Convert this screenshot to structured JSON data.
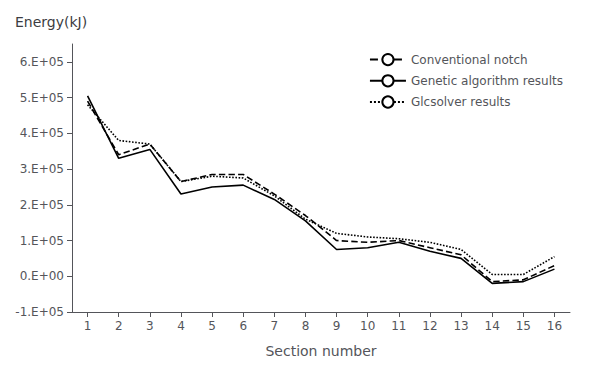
{
  "chart_data": {
    "type": "line",
    "title": "Energy(kJ)",
    "xlabel": "Section number",
    "x": [
      1,
      2,
      3,
      4,
      5,
      6,
      7,
      8,
      9,
      10,
      11,
      12,
      13,
      14,
      15,
      16
    ],
    "xlim": [
      0.5,
      16.5
    ],
    "xticks": [
      1,
      2,
      3,
      4,
      5,
      6,
      7,
      8,
      9,
      10,
      11,
      12,
      13,
      14,
      15,
      16
    ],
    "ylim": [
      -100000,
      650000
    ],
    "yticks": [
      {
        "value": -100000,
        "label": "-1.E+05"
      },
      {
        "value": 0,
        "label": "0.E+00"
      },
      {
        "value": 100000,
        "label": "1.E+05"
      },
      {
        "value": 200000,
        "label": "2.E+05"
      },
      {
        "value": 300000,
        "label": "3.E+05"
      },
      {
        "value": 400000,
        "label": "4.E+05"
      },
      {
        "value": 500000,
        "label": "5.E+05"
      },
      {
        "value": 600000,
        "label": "6.E+05"
      }
    ],
    "grid": false,
    "legend": "upper right",
    "series": [
      {
        "name": "Conventional notch",
        "color": "#000000",
        "line_style": "dashed",
        "values": [
          490000,
          340000,
          370000,
          265000,
          285000,
          285000,
          230000,
          170000,
          100000,
          95000,
          100000,
          80000,
          60000,
          -15000,
          -10000,
          30000
        ]
      },
      {
        "name": "Genetic algorithm results",
        "color": "#000000",
        "line_style": "solid",
        "values": [
          505000,
          330000,
          355000,
          230000,
          250000,
          255000,
          215000,
          155000,
          75000,
          80000,
          95000,
          70000,
          50000,
          -20000,
          -15000,
          20000
        ]
      },
      {
        "name": "Glcsolver results",
        "color": "#000000",
        "line_style": "dotted",
        "values": [
          480000,
          380000,
          370000,
          265000,
          280000,
          275000,
          225000,
          160000,
          120000,
          110000,
          105000,
          95000,
          75000,
          5000,
          5000,
          55000
        ]
      }
    ]
  }
}
